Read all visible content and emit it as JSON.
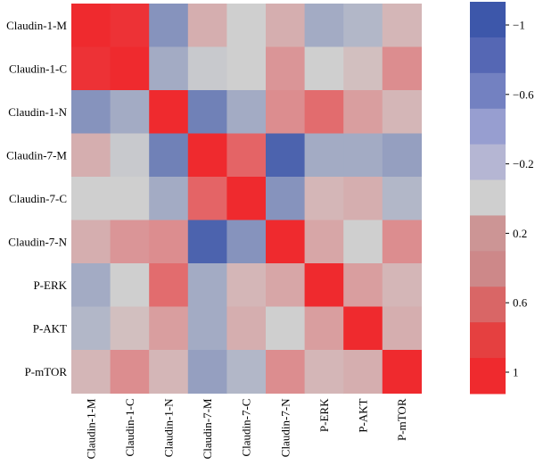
{
  "chart_data": {
    "type": "heatmap",
    "title": "",
    "xlabel": "",
    "ylabel": "",
    "x_categories": [
      "Claudin-1-M",
      "Claudin-1-C",
      "Claudin-1-N",
      "Claudin-7-M",
      "Claudin-7-C",
      "Claudin-7-N",
      "P-ERK",
      "P-AKT",
      "P-mTOR"
    ],
    "y_categories": [
      "Claudin-1-M",
      "Claudin-1-C",
      "Claudin-1-N",
      "Claudin-7-M",
      "Claudin-7-C",
      "Claudin-7-N",
      "P-ERK",
      "P-AKT",
      "P-mTOR"
    ],
    "values": [
      [
        1.0,
        0.95,
        -0.5,
        0.2,
        0.0,
        0.2,
        -0.3,
        -0.2,
        0.15
      ],
      [
        0.95,
        1.0,
        -0.3,
        -0.05,
        0.0,
        0.35,
        0.0,
        0.1,
        0.4
      ],
      [
        -0.5,
        -0.3,
        1.0,
        -0.65,
        -0.3,
        0.4,
        0.6,
        0.3,
        0.15
      ],
      [
        0.2,
        -0.05,
        -0.65,
        1.0,
        0.65,
        -0.9,
        -0.3,
        -0.3,
        -0.4
      ],
      [
        0.0,
        0.0,
        -0.3,
        0.65,
        1.0,
        -0.5,
        0.15,
        0.2,
        -0.2
      ],
      [
        0.2,
        0.35,
        0.4,
        -0.9,
        -0.5,
        1.0,
        0.25,
        0.0,
        0.4
      ],
      [
        -0.3,
        0.0,
        0.6,
        -0.3,
        0.15,
        0.25,
        1.0,
        0.3,
        0.15
      ],
      [
        -0.2,
        0.1,
        0.3,
        -0.3,
        0.2,
        0.0,
        0.3,
        1.0,
        0.2
      ],
      [
        0.15,
        0.4,
        0.15,
        -0.4,
        -0.2,
        0.4,
        0.15,
        0.2,
        1.0
      ]
    ],
    "colorbar": {
      "range": [
        1,
        -1
      ],
      "tick_values": [
        -1,
        -0.6,
        -0.2,
        0.2,
        0.6,
        1
      ],
      "tick_labels": [
        "−1",
        "−0.6",
        "−0.2",
        "0.2",
        "0.6",
        "1"
      ],
      "levels_top_to_bottom": [
        "#3d57aa",
        "#5567b4",
        "#7381c1",
        "#979ed0",
        "#b5b6d3",
        "#cfcfcf",
        "#cc9595",
        "#cd8889",
        "#d96666",
        "#e54040",
        "#ef2a2e"
      ]
    },
    "grid": false
  },
  "colors": {
    "neg_strong": "#3d57aa",
    "neutral": "#cfcfcf",
    "pos_strong": "#ef2a2e"
  }
}
